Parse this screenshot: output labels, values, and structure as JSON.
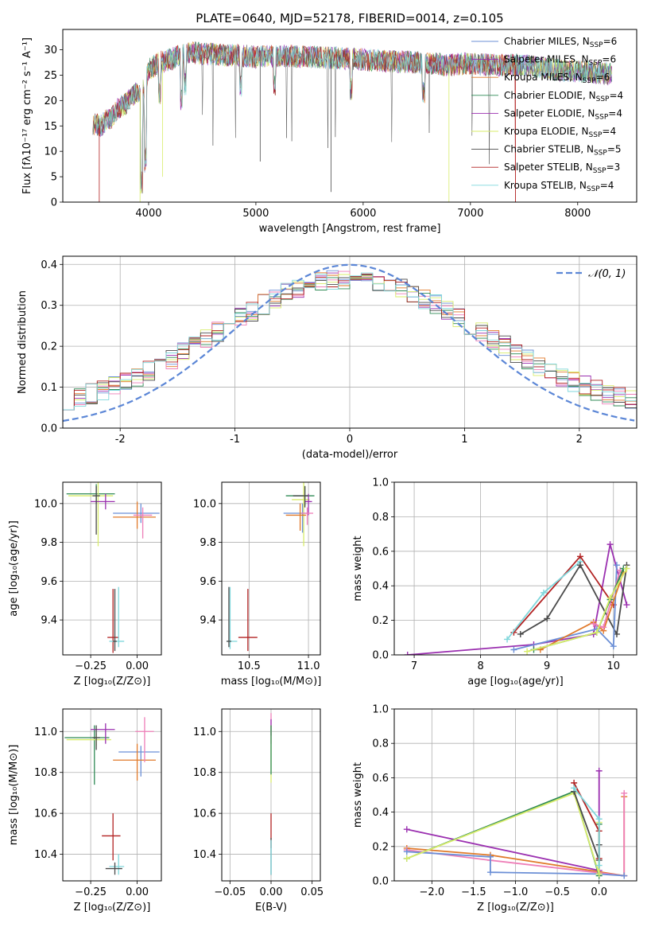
{
  "colors": {
    "s1": "#6b8fd6",
    "s2": "#9b30b0",
    "s3": "#e07a2a",
    "s4": "#2f8a55",
    "s5": "#ee7fb8",
    "s6": "#d8ec6a",
    "s7": "#4a4a4a",
    "s8": "#b22222",
    "s9": "#7fd7dc",
    "gauss": "#5b86d6"
  },
  "chart_data": [
    {
      "id": "spectrum",
      "type": "line",
      "title": "PLATE=0640, MJD=52178, FIBERID=0014, z=0.105",
      "xlabel": "wavelength [Angstrom, rest frame]",
      "ylabel": "Flux [fλ10⁻¹⁷ erg cm⁻² s⁻¹ A⁻¹]",
      "xlim": [
        3200,
        8550
      ],
      "ylim": [
        0,
        34
      ],
      "xticks": [
        4000,
        5000,
        6000,
        7000,
        8000
      ],
      "yticks": [
        0,
        5,
        10,
        15,
        20,
        25,
        30
      ],
      "grid": false,
      "legend_position": "top-right",
      "continuum": {
        "x": [
          3480,
          3550,
          3600,
          3650,
          3700,
          3750,
          3800,
          3850,
          3900,
          3950,
          4000,
          4100,
          4200,
          4300,
          4400,
          4500,
          4700,
          5000,
          5300,
          5600,
          5900,
          6200,
          6500,
          6800,
          7000,
          7200,
          7400,
          7600,
          7800,
          8000,
          8200,
          8300
        ],
        "y": [
          15.5,
          15.0,
          16.0,
          16.5,
          18.0,
          19.0,
          19.5,
          21.0,
          21.5,
          22.0,
          26.0,
          27.5,
          28.0,
          29.0,
          29.5,
          29.2,
          29.0,
          28.6,
          28.8,
          28.5,
          28.2,
          27.8,
          27.5,
          27.0,
          27.3,
          27.0,
          27.0,
          26.8,
          26.0,
          25.8,
          25.5,
          25.2
        ]
      },
      "series": [
        {
          "name": "Chabrier MILES, N_SSP=6",
          "label_main": "Chabrier MILES, N",
          "label_sub": "SSP",
          "label_tail": "=6",
          "color": "s1"
        },
        {
          "name": "Salpeter MILES, N_SSP=6",
          "label_main": "Salpeter MILES, N",
          "label_sub": "SSP",
          "label_tail": "=6",
          "color": "s2"
        },
        {
          "name": "Kroupa MILES, N_SSP=6",
          "label_main": "Kroupa MILES, N",
          "label_sub": "SSP",
          "label_tail": "=6",
          "color": "s3"
        },
        {
          "name": "Chabrier ELODIE, N_SSP=4",
          "label_main": "Chabrier ELODIE, N",
          "label_sub": "SSP",
          "label_tail": "=4",
          "color": "s4"
        },
        {
          "name": "Salpeter ELODIE, N_SSP=4",
          "label_main": "Salpeter ELODIE, N",
          "label_sub": "SSP",
          "label_tail": "=4",
          "color": "s2"
        },
        {
          "name": "Kroupa ELODIE, N_SSP=4",
          "label_main": "Kroupa ELODIE, N",
          "label_sub": "SSP",
          "label_tail": "=4",
          "color": "s6"
        },
        {
          "name": "Chabrier STELIB, N_SSP=5",
          "label_main": "Chabrier STELIB, N",
          "label_sub": "SSP",
          "label_tail": "=5",
          "color": "s7"
        },
        {
          "name": "Salpeter STELIB, N_SSP=3",
          "label_main": "Salpeter STELIB, N",
          "label_sub": "SSP",
          "label_tail": "=3",
          "color": "s8"
        },
        {
          "name": "Kroupa STELIB, N_SSP=4",
          "label_main": "Kroupa STELIB, N",
          "label_sub": "SSP",
          "label_tail": "=4",
          "color": "s9"
        }
      ]
    },
    {
      "id": "residuals",
      "type": "histogram",
      "xlabel": "(data-model)/error",
      "ylabel": "Normed distribution",
      "xlim": [
        -2.5,
        2.5
      ],
      "ylim": [
        0,
        0.42
      ],
      "xticks": [
        -2,
        -1,
        0,
        1,
        2
      ],
      "yticks": [
        0.0,
        0.1,
        0.2,
        0.3,
        0.4
      ],
      "grid": true,
      "legend_position": "top-right",
      "gaussian_label": "𝒩(0, 1)",
      "bin_width": 0.1,
      "series_colors": [
        "s1",
        "s2",
        "s3",
        "s4",
        "s5",
        "s6",
        "s7",
        "s8",
        "s9"
      ]
    },
    {
      "id": "age-vs-Z",
      "type": "errorbar",
      "xlabel": "Z [log₁₀(Z/Z⊙)]",
      "ylabel": "age  [log₁₀(age/yr)]",
      "xlim": [
        -0.4,
        0.13
      ],
      "ylim": [
        9.22,
        10.11
      ],
      "xticks": [
        -0.25,
        0.0
      ],
      "xtick_labels": [
        "−0.25",
        "0.00"
      ],
      "yticks": [
        9.4,
        9.6,
        9.8,
        10.0
      ],
      "grid": true,
      "points": [
        {
          "color": "s4",
          "x": -0.22,
          "y": 10.05,
          "xerr": [
            0.16,
            0.1
          ],
          "yerr": [
            0.05,
            0.05
          ]
        },
        {
          "color": "s6",
          "x": -0.21,
          "y": 10.04,
          "xerr": [
            0.16,
            0.08
          ],
          "yerr": [
            0.26,
            0.07
          ]
        },
        {
          "color": "s2",
          "x": -0.17,
          "y": 10.01,
          "xerr": [
            0.08,
            0.05
          ],
          "yerr": [
            0.04,
            0.04
          ]
        },
        {
          "color": "s7",
          "x": -0.22,
          "y": 10.04,
          "xerr": [
            0.02,
            0.02
          ],
          "yerr": [
            0.2,
            0.05
          ]
        },
        {
          "color": "s1",
          "x": 0.02,
          "y": 9.95,
          "xerr": [
            0.15,
            0.1
          ],
          "yerr": [
            0.05,
            0.05
          ]
        },
        {
          "color": "s3",
          "x": 0.0,
          "y": 9.93,
          "xerr": [
            0.13,
            0.1
          ],
          "yerr": [
            0.06,
            0.08
          ]
        },
        {
          "color": "s5",
          "x": 0.03,
          "y": 9.94,
          "xerr": [
            0.05,
            0.05
          ],
          "yerr": [
            0.12,
            0.04
          ]
        },
        {
          "color": "s8",
          "x": -0.13,
          "y": 9.31,
          "xerr": [
            0.03,
            0.03
          ],
          "yerr": [
            0.08,
            0.25
          ]
        },
        {
          "color": "s9",
          "x": -0.1,
          "y": 9.29,
          "xerr": [
            0.05,
            0.03
          ],
          "yerr": [
            0.03,
            0.28
          ]
        },
        {
          "color": "s7",
          "x": -0.12,
          "y": 9.29,
          "xerr": [
            0.01,
            0.01
          ],
          "yerr": [
            0.05,
            0.27
          ]
        }
      ]
    },
    {
      "id": "age-vs-mass",
      "type": "errorbar",
      "xlabel": "mass [log₁₀(M/M⊙)]",
      "ylabel": "",
      "xlim": [
        10.27,
        11.1
      ],
      "ylim": [
        9.22,
        10.11
      ],
      "xticks": [
        10.5,
        11.0
      ],
      "xtick_labels": [
        "10.5",
        "11.0"
      ],
      "yticks": [
        9.4,
        9.6,
        9.8,
        10.0
      ],
      "grid": true,
      "points": [
        {
          "color": "s4",
          "x": 10.97,
          "y": 10.04,
          "xerr": [
            0.16,
            0.08
          ],
          "yerr": [
            0.05,
            0.05
          ]
        },
        {
          "color": "s6",
          "x": 10.96,
          "y": 10.02,
          "xerr": [
            0.1,
            0.05
          ],
          "yerr": [
            0.24,
            0.09
          ]
        },
        {
          "color": "s2",
          "x": 11.0,
          "y": 10.01,
          "xerr": [
            0.03,
            0.03
          ],
          "yerr": [
            0.07,
            0.04
          ]
        },
        {
          "color": "s7",
          "x": 10.97,
          "y": 10.04,
          "xerr": [
            0.1,
            0.03
          ],
          "yerr": [
            0.06,
            0.05
          ]
        },
        {
          "color": "s1",
          "x": 10.95,
          "y": 9.95,
          "xerr": [
            0.16,
            0.05
          ],
          "yerr": [
            0.1,
            0.05
          ]
        },
        {
          "color": "s3",
          "x": 10.93,
          "y": 9.94,
          "xerr": [
            0.12,
            0.05
          ],
          "yerr": [
            0.08,
            0.06
          ]
        },
        {
          "color": "s5",
          "x": 10.99,
          "y": 9.95,
          "xerr": [
            0.05,
            0.05
          ],
          "yerr": [
            0.06,
            0.03
          ]
        },
        {
          "color": "s8",
          "x": 10.49,
          "y": 9.31,
          "xerr": [
            0.08,
            0.08
          ],
          "yerr": [
            0.07,
            0.25
          ]
        },
        {
          "color": "s9",
          "x": 10.34,
          "y": 9.29,
          "xerr": [
            0.03,
            0.06
          ],
          "yerr": [
            0.04,
            0.28
          ]
        },
        {
          "color": "s7",
          "x": 10.33,
          "y": 9.29,
          "xerr": [
            0.02,
            0.02
          ],
          "yerr": [
            0.03,
            0.28
          ]
        }
      ]
    },
    {
      "id": "weight-vs-age",
      "type": "line",
      "xlabel": "age  [log₁₀(age/yr)]",
      "ylabel": "mass weight",
      "xlim": [
        6.7,
        10.35
      ],
      "ylim": [
        0,
        1.0
      ],
      "xticks": [
        7,
        8,
        9,
        10
      ],
      "yticks": [
        0.0,
        0.2,
        0.4,
        0.6,
        0.8,
        1.0
      ],
      "grid": true,
      "series": [
        {
          "color": "s2",
          "x": [
            6.9,
            8.8,
            9.7,
            9.95,
            10.2
          ],
          "y": [
            0.0,
            0.06,
            0.12,
            0.64,
            0.29
          ]
        },
        {
          "color": "s8",
          "x": [
            8.5,
            9.5,
            10.0
          ],
          "y": [
            0.13,
            0.57,
            0.29
          ]
        },
        {
          "color": "s9",
          "x": [
            8.4,
            8.95,
            9.5
          ],
          "y": [
            0.09,
            0.36,
            0.54
          ]
        },
        {
          "color": "s7",
          "x": [
            8.6,
            9.0,
            9.5,
            10.05,
            10.2
          ],
          "y": [
            0.12,
            0.21,
            0.52,
            0.12,
            0.52
          ]
        },
        {
          "color": "s1",
          "x": [
            8.5,
            9.75,
            10.0,
            10.05
          ],
          "y": [
            0.03,
            0.15,
            0.05,
            0.52
          ]
        },
        {
          "color": "s3",
          "x": [
            8.9,
            9.7,
            9.85,
            10.15
          ],
          "y": [
            0.03,
            0.19,
            0.14,
            0.48
          ]
        },
        {
          "color": "s5",
          "x": [
            9.7,
            9.85,
            10.1
          ],
          "y": [
            0.18,
            0.16,
            0.49
          ]
        },
        {
          "color": "s4",
          "x": [
            8.8,
            9.75,
            9.95,
            10.15
          ],
          "y": [
            0.03,
            0.13,
            0.32,
            0.5
          ]
        },
        {
          "color": "s6",
          "x": [
            8.7,
            9.75,
            9.95,
            10.2
          ],
          "y": [
            0.02,
            0.13,
            0.33,
            0.5
          ]
        }
      ]
    },
    {
      "id": "mass-vs-Z",
      "type": "errorbar",
      "xlabel": "Z [log₁₀(Z/Z⊙)]",
      "ylabel": "mass [log₁₀(M/M⊙)]",
      "xlim": [
        -0.4,
        0.13
      ],
      "ylim": [
        10.27,
        11.11
      ],
      "xticks": [
        -0.25,
        0.0
      ],
      "xtick_labels": [
        "−0.25",
        "0.00"
      ],
      "yticks": [
        10.4,
        10.6,
        10.8,
        11.0
      ],
      "grid": true,
      "points": [
        {
          "color": "s4",
          "x": -0.23,
          "y": 10.97,
          "xerr": [
            0.16,
            0.08
          ],
          "yerr": [
            0.23,
            0.06
          ]
        },
        {
          "color": "s6",
          "x": -0.22,
          "y": 10.96,
          "xerr": [
            0.16,
            0.08
          ],
          "yerr": [
            0.03,
            0.03
          ]
        },
        {
          "color": "s2",
          "x": -0.17,
          "y": 11.01,
          "xerr": [
            0.08,
            0.05
          ],
          "yerr": [
            0.07,
            0.03
          ]
        },
        {
          "color": "s7",
          "x": -0.22,
          "y": 10.97,
          "xerr": [
            0.02,
            0.02
          ],
          "yerr": [
            0.06,
            0.06
          ]
        },
        {
          "color": "s1",
          "x": 0.02,
          "y": 10.9,
          "xerr": [
            0.12,
            0.1
          ],
          "yerr": [
            0.12,
            0.03
          ]
        },
        {
          "color": "s3",
          "x": 0.0,
          "y": 10.86,
          "xerr": [
            0.13,
            0.1
          ],
          "yerr": [
            0.1,
            0.08
          ]
        },
        {
          "color": "s5",
          "x": 0.04,
          "y": 11.0,
          "xerr": [
            0.05,
            0.05
          ],
          "yerr": [
            0.15,
            0.07
          ]
        },
        {
          "color": "s8",
          "x": -0.13,
          "y": 10.49,
          "xerr": [
            0.06,
            0.04
          ],
          "yerr": [
            0.12,
            0.11
          ]
        },
        {
          "color": "s9",
          "x": -0.1,
          "y": 10.34,
          "xerr": [
            0.05,
            0.03
          ],
          "yerr": [
            0.04,
            0.06
          ]
        },
        {
          "color": "s7",
          "x": -0.12,
          "y": 10.33,
          "xerr": [
            0.05,
            0.04
          ],
          "yerr": [
            0.03,
            0.03
          ]
        }
      ]
    },
    {
      "id": "mass-vs-EBV",
      "type": "errorbar",
      "xlabel": "E(B-V)",
      "ylabel": "",
      "xlim": [
        -0.06,
        0.06
      ],
      "ylim": [
        10.27,
        11.11
      ],
      "xticks": [
        -0.05,
        0.0,
        0.05
      ],
      "xtick_labels": [
        "−0.05",
        "0.00",
        "0.05"
      ],
      "yticks": [
        10.4,
        10.6,
        10.8,
        11.0
      ],
      "grid": true,
      "points": [
        {
          "color": "s5",
          "x": 0.0,
          "y": 11.0,
          "xerr": [
            0.0,
            0.0
          ],
          "yerr": [
            0.06,
            0.09
          ]
        },
        {
          "color": "s2",
          "x": 0.0,
          "y": 11.02,
          "xerr": [
            0.0,
            0.0
          ],
          "yerr": [
            0.04,
            0.04
          ]
        },
        {
          "color": "s6",
          "x": 0.0,
          "y": 10.95,
          "xerr": [
            0.0,
            0.0
          ],
          "yerr": [
            0.2,
            0.08
          ]
        },
        {
          "color": "s4",
          "x": 0.0,
          "y": 10.97,
          "xerr": [
            0.0,
            0.0
          ],
          "yerr": [
            0.18,
            0.06
          ]
        },
        {
          "color": "s8",
          "x": 0.0,
          "y": 10.49,
          "xerr": [
            0.0,
            0.0
          ],
          "yerr": [
            0.06,
            0.11
          ]
        },
        {
          "color": "s7",
          "x": 0.0,
          "y": 10.33,
          "xerr": [
            0.0,
            0.0
          ],
          "yerr": [
            0.03,
            0.15
          ]
        },
        {
          "color": "s9",
          "x": 0.0,
          "y": 10.34,
          "xerr": [
            0.0,
            0.0
          ],
          "yerr": [
            0.04,
            0.13
          ]
        }
      ]
    },
    {
      "id": "weight-vs-Z",
      "type": "line",
      "xlabel": "Z [log₁₀(Z/Z⊙)]",
      "ylabel": "mass weight",
      "xlim": [
        -2.45,
        0.45
      ],
      "ylim": [
        0,
        1.0
      ],
      "xticks": [
        -2.0,
        -1.5,
        -1.0,
        -0.5,
        0.0
      ],
      "xtick_labels": [
        "−2.0",
        "−1.5",
        "−1.0",
        "−0.5",
        "0.0"
      ],
      "yticks": [
        0.0,
        0.2,
        0.4,
        0.6,
        0.8,
        1.0
      ],
      "grid": true,
      "series": [
        {
          "color": "s2",
          "x": [
            -2.3,
            0.0,
            0.0
          ],
          "y": [
            0.3,
            0.06,
            0.64
          ]
        },
        {
          "color": "s3",
          "x": [
            -2.3,
            -1.3,
            0.3,
            0.3
          ],
          "y": [
            0.19,
            0.15,
            0.03,
            0.49
          ]
        },
        {
          "color": "s5",
          "x": [
            -2.3,
            -1.3,
            0.3,
            0.3
          ],
          "y": [
            0.18,
            0.12,
            0.03,
            0.51
          ]
        },
        {
          "color": "s1",
          "x": [
            -2.3,
            -1.3,
            -1.3,
            0.0,
            0.3
          ],
          "y": [
            0.17,
            0.14,
            0.05,
            0.04,
            0.03
          ]
        },
        {
          "color": "s4",
          "x": [
            -2.3,
            -0.3,
            0.0,
            0.0
          ],
          "y": [
            0.13,
            0.52,
            0.03,
            0.33
          ]
        },
        {
          "color": "s6",
          "x": [
            -2.3,
            -0.3,
            0.0,
            0.0
          ],
          "y": [
            0.13,
            0.51,
            0.04,
            0.34
          ]
        },
        {
          "color": "s7",
          "x": [
            -0.3,
            0.0,
            0.0
          ],
          "y": [
            0.52,
            0.12,
            0.21
          ]
        },
        {
          "color": "s8",
          "x": [
            -0.3,
            0.0,
            0.0
          ],
          "y": [
            0.57,
            0.29,
            0.13
          ]
        },
        {
          "color": "s9",
          "x": [
            -0.3,
            0.0,
            0.0
          ],
          "y": [
            0.54,
            0.36,
            0.09
          ]
        }
      ]
    }
  ]
}
